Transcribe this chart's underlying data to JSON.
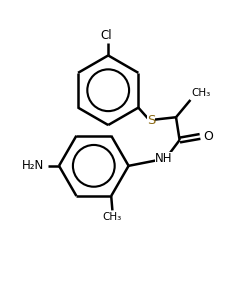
{
  "background_color": "#ffffff",
  "line_color": "#000000",
  "S_color": "#8B6914",
  "linewidth": 1.8,
  "figsize": [
    2.5,
    2.88
  ],
  "dpi": 100,
  "xlim": [
    0,
    10
  ],
  "ylim": [
    0,
    11.52
  ]
}
